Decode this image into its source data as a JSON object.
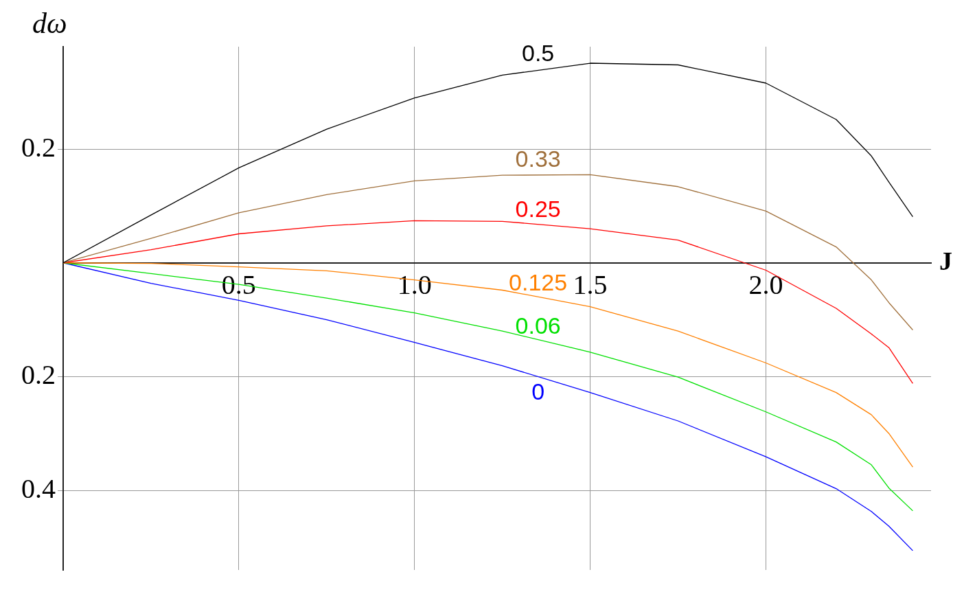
{
  "chart_data": {
    "type": "line",
    "xlabel": "J",
    "ylabel": "dω",
    "x": [
      0,
      0.25,
      0.5,
      0.75,
      1.0,
      1.25,
      1.5,
      1.75,
      2.0,
      2.2,
      2.3,
      2.35,
      2.418
    ],
    "series": [
      {
        "name": "0.5",
        "color": "#000000",
        "values": [
          0,
          0.084,
          0.167,
          0.235,
          0.29,
          0.33,
          0.351,
          0.348,
          0.316,
          0.252,
          0.188,
          0.142,
          0.081
        ]
      },
      {
        "name": "0.33",
        "color": "#a0703c",
        "values": [
          0,
          0.043,
          0.088,
          0.12,
          0.144,
          0.154,
          0.155,
          0.134,
          0.091,
          0.028,
          -0.03,
          -0.07,
          -0.118
        ]
      },
      {
        "name": "0.25",
        "color": "#ff0000",
        "values": [
          0,
          0.023,
          0.051,
          0.065,
          0.074,
          0.073,
          0.06,
          0.04,
          -0.013,
          -0.08,
          -0.125,
          -0.149,
          -0.212
        ]
      },
      {
        "name": "0.125",
        "color": "#ff8000",
        "values": [
          0,
          -0.001,
          -0.007,
          -0.014,
          -0.03,
          -0.048,
          -0.077,
          -0.12,
          -0.176,
          -0.228,
          -0.267,
          -0.3,
          -0.359
        ]
      },
      {
        "name": "0.06",
        "color": "#00e000",
        "values": [
          0,
          -0.019,
          -0.038,
          -0.062,
          -0.088,
          -0.12,
          -0.157,
          -0.201,
          -0.262,
          -0.315,
          -0.355,
          -0.396,
          -0.436
        ]
      },
      {
        "name": "0",
        "color": "#0000ff",
        "values": [
          0,
          -0.036,
          -0.066,
          -0.1,
          -0.14,
          -0.181,
          -0.228,
          -0.278,
          -0.341,
          -0.397,
          -0.437,
          -0.463,
          -0.506
        ]
      }
    ],
    "xlim": [
      0,
      2.47
    ],
    "ylim": [
      -0.54,
      0.38
    ],
    "xticks": [
      {
        "value": 0.5,
        "label": "0.5"
      },
      {
        "value": 1.0,
        "label": "1.0"
      },
      {
        "value": 1.5,
        "label": "1.5"
      },
      {
        "value": 2.0,
        "label": "2.0"
      }
    ],
    "yticks": [
      {
        "value": -0.4,
        "label": "0.4"
      },
      {
        "value": -0.2,
        "label": "0.2"
      },
      {
        "value": 0.2,
        "label": "0.2"
      }
    ],
    "grid": true,
    "legend": false,
    "marker": "none",
    "line_style": "solid"
  }
}
